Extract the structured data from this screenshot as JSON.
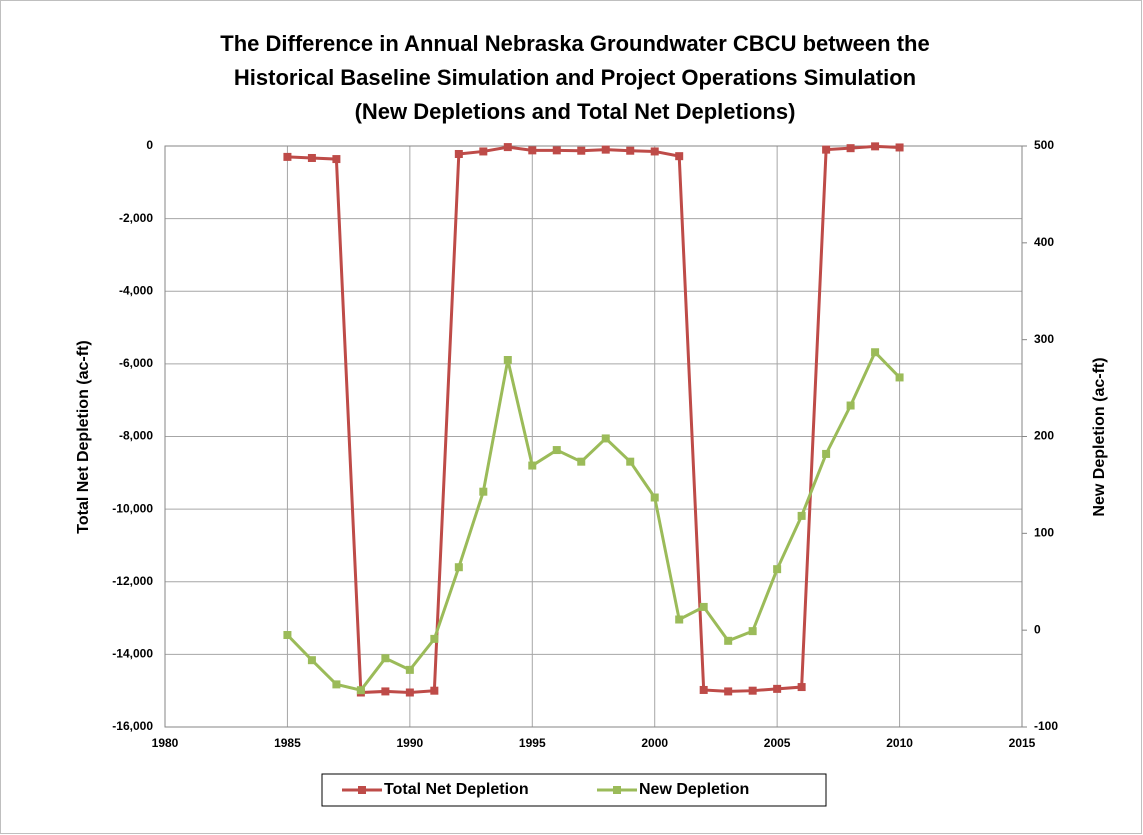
{
  "chart_data": {
    "type": "line",
    "title": [
      "The Difference in Annual Nebraska Groundwater CBCU between the",
      "Historical Baseline Simulation and Project Operations Simulation",
      "(New Depletions and Total Net Depletions)"
    ],
    "y_label": "Total Net Depletion (ac-ft)",
    "y2_label": "New Depletion (ac-ft)",
    "x": [
      1985,
      1986,
      1987,
      1988,
      1989,
      1990,
      1991,
      1992,
      1993,
      1994,
      1995,
      1996,
      1997,
      1998,
      1999,
      2000,
      2001,
      2002,
      2003,
      2004,
      2005,
      2006,
      2007,
      2008,
      2009,
      2010
    ],
    "series": [
      {
        "name": "Total Net Depletion",
        "color": "#be4b48",
        "values": [
          -300,
          -330,
          -360,
          -15050,
          -15020,
          -15050,
          -15000,
          -220,
          -150,
          -30,
          -120,
          -120,
          -130,
          -100,
          -130,
          -150,
          -280,
          -14980,
          -15020,
          -15000,
          -14950,
          -14900,
          -100,
          -60,
          -10,
          -40
        ]
      },
      {
        "name": "New Depletion",
        "color": "#9bbb59",
        "axis": "y2",
        "values": [
          -5,
          -31,
          -56,
          -62,
          -29,
          -41,
          -9,
          65,
          143,
          279,
          170,
          186,
          174,
          198,
          174,
          137,
          11,
          24,
          -11,
          -1,
          63,
          118,
          182,
          232,
          287,
          261
        ]
      }
    ],
    "xlim": [
      1980,
      2015
    ],
    "xticks": [
      1980,
      1985,
      1990,
      1995,
      2000,
      2005,
      2010,
      2015
    ],
    "ylim": [
      -16000,
      0
    ],
    "yticks": [
      {
        "value": -16000,
        "label": "-16,000"
      },
      {
        "value": -14000,
        "label": "-14,000"
      },
      {
        "value": -12000,
        "label": "-12,000"
      },
      {
        "value": -10000,
        "label": "-10,000"
      },
      {
        "value": -8000,
        "label": "-8,000"
      },
      {
        "value": -6000,
        "label": "-6,000"
      },
      {
        "value": -4000,
        "label": "-4,000"
      },
      {
        "value": -2000,
        "label": "-2,000"
      },
      0
    ],
    "y2lim": [
      -100,
      500
    ],
    "y2ticks": [
      -100,
      0,
      100,
      200,
      300,
      400,
      500
    ],
    "grid": true,
    "legend": "bottom"
  }
}
